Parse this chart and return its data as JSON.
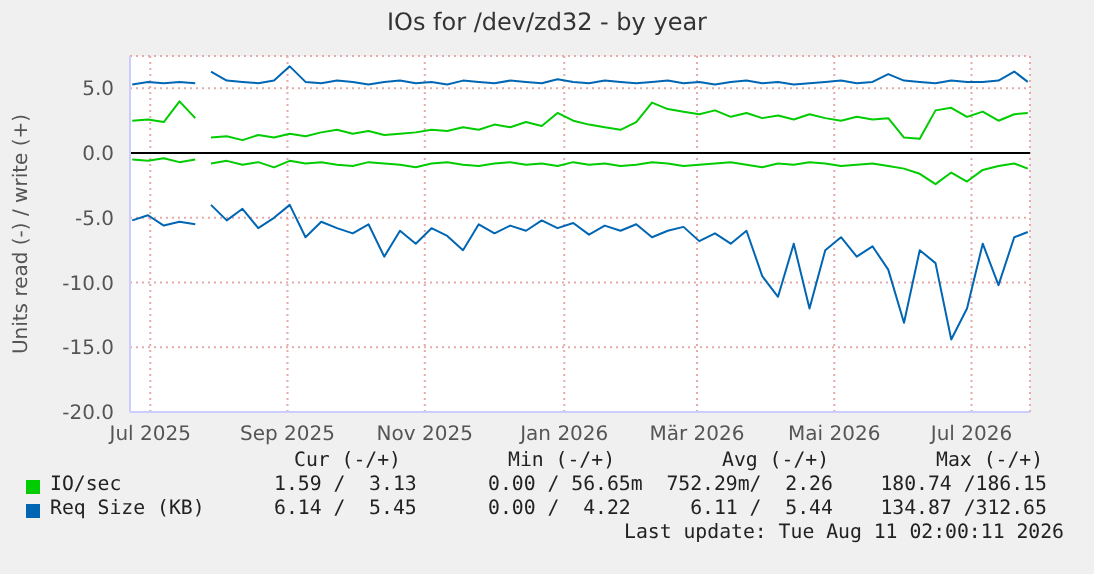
{
  "chart_data": {
    "type": "line",
    "title": "IOs for /dev/zd32 - by year",
    "ylabel": "Units read (-) / write (+)",
    "x": [
      "2025-07-08",
      "2025-07-15",
      "2025-07-22",
      "2025-07-29",
      "2025-08-05",
      "2025-08-09",
      "2025-08-12",
      "2025-08-19",
      "2025-08-26",
      "2025-09-02",
      "2025-09-09",
      "2025-09-16",
      "2025-09-23",
      "2025-09-30",
      "2025-10-07",
      "2025-10-14",
      "2025-10-21",
      "2025-10-28",
      "2025-11-04",
      "2025-11-11",
      "2025-11-18",
      "2025-11-25",
      "2025-12-02",
      "2025-12-09",
      "2025-12-16",
      "2025-12-23",
      "2025-12-30",
      "2026-01-06",
      "2026-01-13",
      "2026-01-20",
      "2026-01-27",
      "2026-02-03",
      "2026-02-10",
      "2026-02-17",
      "2026-02-24",
      "2026-03-03",
      "2026-03-10",
      "2026-03-17",
      "2026-03-24",
      "2026-03-31",
      "2026-04-07",
      "2026-04-14",
      "2026-04-21",
      "2026-04-28",
      "2026-05-05",
      "2026-05-12",
      "2026-05-19",
      "2026-05-26",
      "2026-06-02",
      "2026-06-09",
      "2026-06-16",
      "2026-06-23",
      "2026-06-30",
      "2026-07-07",
      "2026-07-14",
      "2026-07-21",
      "2026-07-28",
      "2026-08-04",
      "2026-08-10"
    ],
    "series": [
      {
        "name": "IO/sec",
        "color": "#00cc00",
        "values": [
          2.5,
          2.6,
          2.4,
          4.0,
          2.7,
          null,
          1.2,
          1.3,
          1.0,
          1.4,
          1.2,
          1.5,
          1.3,
          1.6,
          1.8,
          1.5,
          1.7,
          1.4,
          1.5,
          1.6,
          1.8,
          1.7,
          2.0,
          1.8,
          2.2,
          2.0,
          2.4,
          2.1,
          3.1,
          2.5,
          2.2,
          2.0,
          1.8,
          2.4,
          3.9,
          3.4,
          3.2,
          3.0,
          3.3,
          2.8,
          3.1,
          2.7,
          2.9,
          2.6,
          3.0,
          2.7,
          2.5,
          2.8,
          2.6,
          2.7,
          1.2,
          1.1,
          3.3,
          3.5,
          2.8,
          3.2,
          2.5,
          3.0,
          3.1
        ]
      },
      {
        "color": "#00cc00",
        "values": [
          -0.5,
          -0.6,
          -0.4,
          -0.7,
          -0.5,
          null,
          -0.8,
          -0.6,
          -0.9,
          -0.7,
          -1.1,
          -0.6,
          -0.8,
          -0.7,
          -0.9,
          -1.0,
          -0.7,
          -0.8,
          -0.9,
          -1.1,
          -0.8,
          -0.7,
          -0.9,
          -1.0,
          -0.8,
          -0.7,
          -0.9,
          -0.8,
          -1.0,
          -0.7,
          -0.9,
          -0.8,
          -1.0,
          -0.9,
          -0.7,
          -0.8,
          -1.0,
          -0.9,
          -0.8,
          -0.7,
          -0.9,
          -1.1,
          -0.8,
          -0.9,
          -0.7,
          -0.8,
          -1.0,
          -0.9,
          -0.8,
          -1.0,
          -1.2,
          -1.6,
          -2.4,
          -1.5,
          -2.2,
          -1.3,
          -1.0,
          -0.8,
          -1.2
        ]
      },
      {
        "name": "Req Size (KB)",
        "color": "#0066b3",
        "values": [
          5.3,
          5.5,
          5.4,
          5.5,
          5.4,
          null,
          6.3,
          5.6,
          5.5,
          5.4,
          5.6,
          6.7,
          5.5,
          5.4,
          5.6,
          5.5,
          5.3,
          5.5,
          5.6,
          5.4,
          5.5,
          5.3,
          5.6,
          5.5,
          5.4,
          5.6,
          5.5,
          5.4,
          5.7,
          5.5,
          5.4,
          5.6,
          5.5,
          5.4,
          5.5,
          5.6,
          5.4,
          5.5,
          5.3,
          5.5,
          5.6,
          5.4,
          5.5,
          5.3,
          5.4,
          5.5,
          5.6,
          5.4,
          5.5,
          6.1,
          5.6,
          5.5,
          5.4,
          5.6,
          5.5,
          5.5,
          5.6,
          6.3,
          5.5
        ]
      },
      {
        "color": "#0066b3",
        "values": [
          -5.2,
          -4.8,
          -5.6,
          -5.3,
          -5.5,
          null,
          -4.0,
          -5.2,
          -4.3,
          -5.8,
          -5.0,
          -4.0,
          -6.5,
          -5.3,
          -5.8,
          -6.2,
          -5.5,
          -8.0,
          -6.0,
          -7.0,
          -5.8,
          -6.4,
          -7.5,
          -5.5,
          -6.2,
          -5.6,
          -6.0,
          -5.2,
          -5.8,
          -5.4,
          -6.3,
          -5.6,
          -6.0,
          -5.5,
          -6.5,
          -6.0,
          -5.7,
          -6.8,
          -6.2,
          -7.0,
          -6.0,
          -9.5,
          -11.1,
          -7.0,
          -12.0,
          -7.5,
          -6.5,
          -8.0,
          -7.2,
          -9.0,
          -13.1,
          -7.5,
          -8.5,
          -14.4,
          -12.0,
          -7.0,
          -10.2,
          -6.5,
          -6.1
        ]
      }
    ],
    "xlim": [
      "2025-07-07",
      "2026-08-11"
    ],
    "xticks": [
      {
        "value": "2025-07-16",
        "label": "Jul 2025"
      },
      {
        "value": "2025-09-15",
        "label": "Sep 2025"
      },
      {
        "value": "2025-11-15",
        "label": "Nov 2025"
      },
      {
        "value": "2026-01-16",
        "label": "Jan 2026"
      },
      {
        "value": "2026-03-16",
        "label": "Mär 2026"
      },
      {
        "value": "2026-05-16",
        "label": "Mai 2026"
      },
      {
        "value": "2026-07-16",
        "label": "Jul 2026"
      }
    ],
    "ylim": [
      -20,
      7.5
    ],
    "yticks": [
      {
        "value": -20,
        "label": "-20.0"
      },
      {
        "value": -15,
        "label": "-15.0"
      },
      {
        "value": -10,
        "label": "-10.0"
      },
      {
        "value": -5,
        "label": "-5.0"
      },
      {
        "value": 0,
        "label": "0.0"
      },
      {
        "value": 5,
        "label": "5.0"
      }
    ],
    "ref_lines": [
      {
        "axis": "y",
        "value": 0,
        "color": "#000000"
      }
    ],
    "grid": true,
    "legend": "bottom",
    "marker": "none",
    "line_style": "solid",
    "annotations": [
      "Cur (-/+)         Min (-/+)         Avg (-/+)         Max (-/+)",
      "1.59 /  3.13      0.00 / 56.65m  752.29m/  2.26    180.74 /186.15",
      "6.14 /  5.45      0.00 /  4.22     6.11 /  5.44    134.87 /312.65",
      "Last update: Tue Aug 11 02:00:11 2026"
    ]
  }
}
